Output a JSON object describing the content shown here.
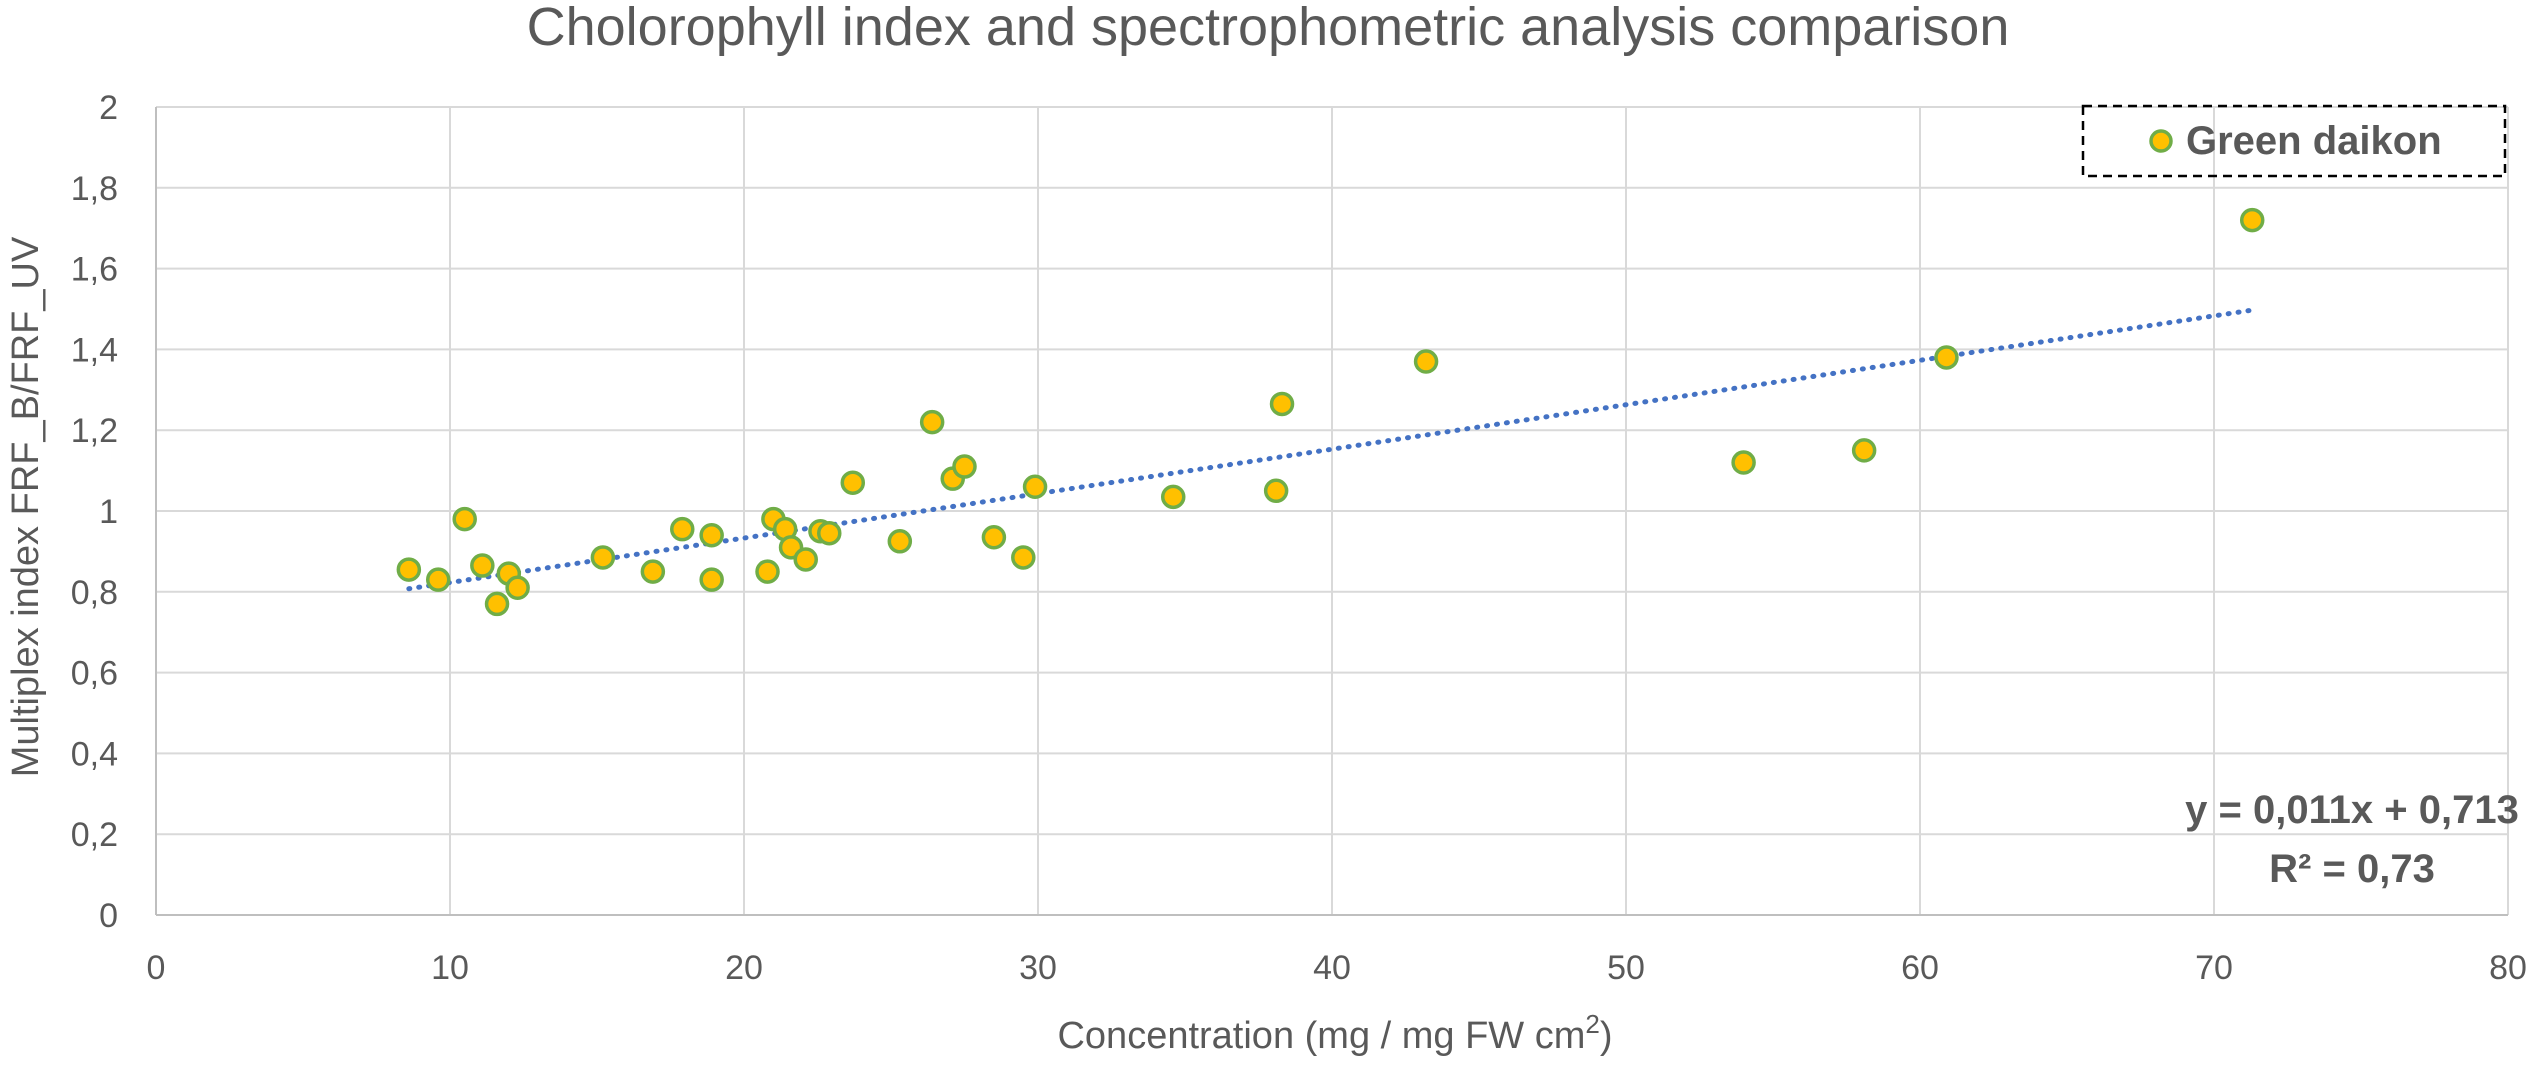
{
  "chart_data": {
    "type": "scatter",
    "title": "Cholorophyll  index and spectrophometric analysis comparison",
    "xlabel": "Concentration (mg / mg FW cm",
    "xlabel_sup": "2",
    "xlabel_close": ")",
    "ylabel": "Multiplex index FRF_B/FRF_UV",
    "xlim": [
      0,
      80
    ],
    "ylim": [
      0,
      2
    ],
    "x_ticks": [
      "0",
      "10",
      "20",
      "30",
      "40",
      "50",
      "60",
      "70",
      "80"
    ],
    "y_ticks": [
      "0",
      "0,2",
      "0,4",
      "0,6",
      "0,8",
      "1",
      "1,2",
      "1,4",
      "1,6",
      "1,8",
      "2"
    ],
    "x_tick_values": [
      0,
      10,
      20,
      30,
      40,
      50,
      60,
      70,
      80
    ],
    "y_tick_values": [
      0,
      0.2,
      0.4,
      0.6,
      0.8,
      1.0,
      1.2,
      1.4,
      1.6,
      1.8,
      2.0
    ],
    "grid": true,
    "legend_position": "top-right",
    "series": [
      {
        "name": "Green daikon",
        "marker_color": "#ffc000",
        "edge_color": "#70ad47",
        "points": [
          {
            "x": 8.6,
            "y": 0.855
          },
          {
            "x": 9.6,
            "y": 0.83
          },
          {
            "x": 10.5,
            "y": 0.98
          },
          {
            "x": 11.1,
            "y": 0.865
          },
          {
            "x": 11.6,
            "y": 0.77
          },
          {
            "x": 12.0,
            "y": 0.845
          },
          {
            "x": 12.3,
            "y": 0.81
          },
          {
            "x": 15.2,
            "y": 0.885
          },
          {
            "x": 16.9,
            "y": 0.85
          },
          {
            "x": 17.9,
            "y": 0.955
          },
          {
            "x": 18.9,
            "y": 0.83
          },
          {
            "x": 18.9,
            "y": 0.94
          },
          {
            "x": 20.8,
            "y": 0.85
          },
          {
            "x": 21.0,
            "y": 0.98
          },
          {
            "x": 21.4,
            "y": 0.955
          },
          {
            "x": 21.6,
            "y": 0.91
          },
          {
            "x": 22.1,
            "y": 0.88
          },
          {
            "x": 22.6,
            "y": 0.95
          },
          {
            "x": 22.9,
            "y": 0.945
          },
          {
            "x": 23.7,
            "y": 1.07
          },
          {
            "x": 25.3,
            "y": 0.925
          },
          {
            "x": 26.4,
            "y": 1.22
          },
          {
            "x": 27.1,
            "y": 1.08
          },
          {
            "x": 27.5,
            "y": 1.11
          },
          {
            "x": 28.5,
            "y": 0.935
          },
          {
            "x": 29.5,
            "y": 0.885
          },
          {
            "x": 29.9,
            "y": 1.06
          },
          {
            "x": 34.6,
            "y": 1.035
          },
          {
            "x": 38.1,
            "y": 1.05
          },
          {
            "x": 38.3,
            "y": 1.265
          },
          {
            "x": 43.2,
            "y": 1.37
          },
          {
            "x": 54.0,
            "y": 1.12
          },
          {
            "x": 58.1,
            "y": 1.15
          },
          {
            "x": 60.9,
            "y": 1.38
          },
          {
            "x": 71.3,
            "y": 1.72
          }
        ]
      }
    ],
    "trendline": {
      "type": "linear",
      "slope": 0.011,
      "intercept": 0.713,
      "x_range": [
        8.6,
        71.3
      ],
      "color": "#4472c4",
      "equation": "y = 0,011x + 0,713",
      "r_squared": "R² = 0,73"
    }
  }
}
